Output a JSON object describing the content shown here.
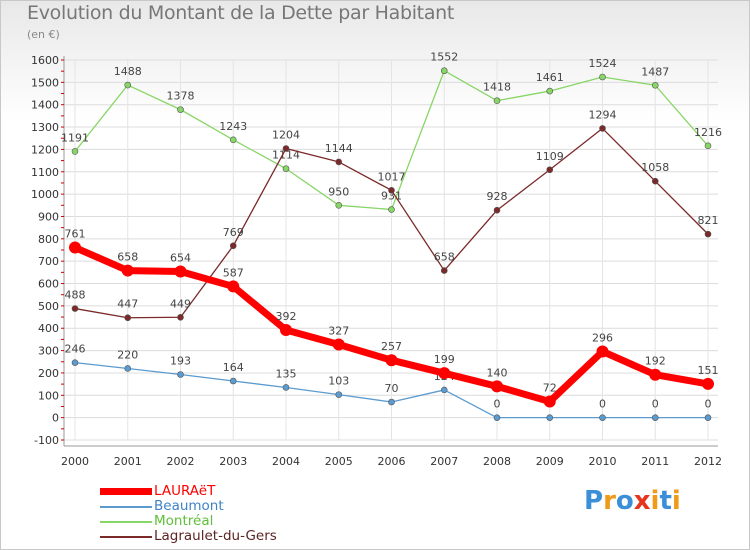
{
  "chart_data": {
    "type": "line",
    "title": "Evolution du Montant de la Dette par Habitant",
    "subtitle": "(en €)",
    "x": [
      "2000",
      "2001",
      "2002",
      "2003",
      "2004",
      "2005",
      "2006",
      "2007",
      "2008",
      "2009",
      "2010",
      "2011",
      "2012"
    ],
    "ylim": [
      -100,
      1600
    ],
    "yticks": [
      -100,
      0,
      100,
      200,
      300,
      400,
      500,
      600,
      700,
      800,
      900,
      1000,
      1100,
      1200,
      1300,
      1400,
      1500,
      1600
    ],
    "grid": true,
    "legend_position": "bottom-left",
    "series": [
      {
        "name": "LAURAëT",
        "color": "#ff0000",
        "thick": true,
        "values": [
          761,
          658,
          654,
          587,
          392,
          327,
          257,
          199,
          140,
          72,
          296,
          192,
          151
        ]
      },
      {
        "name": "Beaumont",
        "color": "#5b9bcf",
        "thick": false,
        "values": [
          246,
          220,
          193,
          164,
          135,
          103,
          70,
          124,
          0,
          0,
          0,
          0,
          0
        ]
      },
      {
        "name": "Montréal",
        "color": "#88d666",
        "thick": false,
        "values": [
          1191,
          1488,
          1378,
          1243,
          1114,
          950,
          931,
          1552,
          1418,
          1461,
          1524,
          1487,
          1216
        ]
      },
      {
        "name": "Lagraulet-du-Gers",
        "color": "#7b2929",
        "thick": false,
        "values": [
          488,
          447,
          449,
          769,
          1204,
          1144,
          1017,
          658,
          928,
          1109,
          1294,
          1058,
          821
        ]
      }
    ]
  },
  "logo": {
    "letters": [
      "P",
      "r",
      "o",
      "x",
      "i",
      "t",
      "i"
    ],
    "colors": [
      "#3a8fd8",
      "#f09a1a",
      "#3a8fd8",
      "#e8341c",
      "#f09a1a",
      "#3a8fd8",
      "#f09a1a"
    ]
  }
}
